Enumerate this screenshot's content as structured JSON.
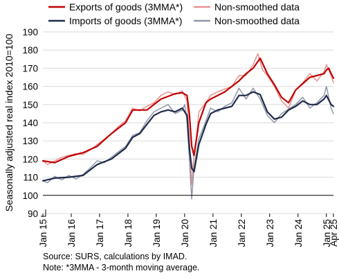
{
  "chart_data": {
    "type": "line",
    "ylabel": "Seasonally adjusted real index 2010=100",
    "ylim": [
      90,
      190
    ],
    "y_axis_break": true,
    "yticks": [
      90,
      100,
      110,
      120,
      130,
      140,
      150,
      160,
      170,
      180,
      190
    ],
    "xlim": [
      "2015-01",
      "2025-04"
    ],
    "x_ticks": [
      {
        "label": "Jan 15",
        "month": "2015-01"
      },
      {
        "label": "Jan 16",
        "month": "2016-01"
      },
      {
        "label": "Jan 17",
        "month": "2017-01"
      },
      {
        "label": "Jan 18",
        "month": "2018-01"
      },
      {
        "label": "Jan 19",
        "month": "2019-01"
      },
      {
        "label": "Jan 20",
        "month": "2020-01"
      },
      {
        "label": "Jan 21",
        "month": "2021-01"
      },
      {
        "label": "Jan 22",
        "month": "2022-01"
      },
      {
        "label": "Jan 23",
        "month": "2023-01"
      },
      {
        "label": "Jan 24",
        "month": "2024-01"
      },
      {
        "label": "Jan 25",
        "month": "2025-01"
      },
      {
        "label": "Apr 25",
        "month": "2025-04"
      }
    ],
    "reference_line": {
      "y": 100,
      "color": "#000000"
    },
    "grid": true,
    "legend": "top",
    "series": [
      {
        "name": "Exports of goods (3MMA*)",
        "color": "#c00000",
        "width": 2.2,
        "points": [
          [
            "2015-01",
            119
          ],
          [
            "2015-06",
            118
          ],
          [
            "2015-12",
            121.5
          ],
          [
            "2016-06",
            123.5
          ],
          [
            "2016-12",
            127
          ],
          [
            "2017-06",
            134
          ],
          [
            "2017-12",
            140
          ],
          [
            "2018-03",
            147
          ],
          [
            "2018-09",
            147
          ],
          [
            "2018-12",
            150
          ],
          [
            "2019-03",
            153
          ],
          [
            "2019-09",
            156
          ],
          [
            "2019-12",
            156.5
          ],
          [
            "2020-02",
            155
          ],
          [
            "2020-03",
            145
          ],
          [
            "2020-04",
            127
          ],
          [
            "2020-05",
            122
          ],
          [
            "2020-07",
            140
          ],
          [
            "2020-10",
            151
          ],
          [
            "2020-12",
            153
          ],
          [
            "2021-06",
            157
          ],
          [
            "2021-12",
            163
          ],
          [
            "2022-03",
            167
          ],
          [
            "2022-06",
            170
          ],
          [
            "2022-09",
            175.5
          ],
          [
            "2022-12",
            167
          ],
          [
            "2023-03",
            161
          ],
          [
            "2023-06",
            154
          ],
          [
            "2023-09",
            151
          ],
          [
            "2023-12",
            158
          ],
          [
            "2024-06",
            165
          ],
          [
            "2024-12",
            167
          ],
          [
            "2025-01",
            169
          ],
          [
            "2025-02",
            170
          ],
          [
            "2025-03",
            167
          ],
          [
            "2025-04",
            164.5
          ]
        ]
      },
      {
        "name": "Non-smoothed data",
        "color": "#e88f8f",
        "width": 1.5,
        "points": [
          [
            "2015-01",
            119
          ],
          [
            "2015-03",
            117
          ],
          [
            "2015-06",
            119
          ],
          [
            "2015-09",
            121
          ],
          [
            "2015-12",
            122
          ],
          [
            "2016-03",
            123
          ],
          [
            "2016-06",
            122.5
          ],
          [
            "2016-09",
            125
          ],
          [
            "2016-12",
            128
          ],
          [
            "2017-03",
            131
          ],
          [
            "2017-06",
            134
          ],
          [
            "2017-09",
            138
          ],
          [
            "2017-12",
            141
          ],
          [
            "2018-03",
            148
          ],
          [
            "2018-06",
            146.5
          ],
          [
            "2018-09",
            149
          ],
          [
            "2018-12",
            151
          ],
          [
            "2019-03",
            155
          ],
          [
            "2019-06",
            157
          ],
          [
            "2019-09",
            155.5
          ],
          [
            "2019-12",
            157.5
          ],
          [
            "2020-02",
            152
          ],
          [
            "2020-03",
            131
          ],
          [
            "2020-04",
            106
          ],
          [
            "2020-05",
            123
          ],
          [
            "2020-06",
            132
          ],
          [
            "2020-07",
            146
          ],
          [
            "2020-10",
            151
          ],
          [
            "2020-12",
            155
          ],
          [
            "2021-03",
            157
          ],
          [
            "2021-06",
            158.5
          ],
          [
            "2021-09",
            160
          ],
          [
            "2021-12",
            166
          ],
          [
            "2022-03",
            166
          ],
          [
            "2022-06",
            172
          ],
          [
            "2022-08",
            178
          ],
          [
            "2022-10",
            169
          ],
          [
            "2022-12",
            166
          ],
          [
            "2023-03",
            160
          ],
          [
            "2023-06",
            152
          ],
          [
            "2023-09",
            148
          ],
          [
            "2023-12",
            158
          ],
          [
            "2024-03",
            162
          ],
          [
            "2024-06",
            167
          ],
          [
            "2024-09",
            163
          ],
          [
            "2024-12",
            168
          ],
          [
            "2025-01",
            172
          ],
          [
            "2025-03",
            166
          ],
          [
            "2025-04",
            162
          ]
        ]
      },
      {
        "name": "Imports of goods (3MMA*)",
        "color": "#1f2a4a",
        "width": 2.2,
        "points": [
          [
            "2015-01",
            108
          ],
          [
            "2015-06",
            109.5
          ],
          [
            "2015-12",
            110
          ],
          [
            "2016-06",
            111
          ],
          [
            "2016-12",
            117
          ],
          [
            "2017-06",
            120
          ],
          [
            "2017-12",
            126
          ],
          [
            "2018-03",
            132
          ],
          [
            "2018-06",
            134
          ],
          [
            "2018-09",
            139
          ],
          [
            "2018-12",
            144
          ],
          [
            "2019-03",
            146
          ],
          [
            "2019-06",
            147
          ],
          [
            "2019-09",
            146
          ],
          [
            "2019-12",
            148
          ],
          [
            "2020-02",
            144
          ],
          [
            "2020-03",
            126
          ],
          [
            "2020-04",
            115
          ],
          [
            "2020-05",
            113
          ],
          [
            "2020-07",
            128
          ],
          [
            "2020-10",
            139
          ],
          [
            "2020-12",
            145
          ],
          [
            "2021-03",
            147
          ],
          [
            "2021-06",
            148
          ],
          [
            "2021-09",
            149
          ],
          [
            "2021-12",
            155
          ],
          [
            "2022-03",
            155
          ],
          [
            "2022-06",
            157
          ],
          [
            "2022-09",
            155.5
          ],
          [
            "2022-12",
            146
          ],
          [
            "2023-03",
            142
          ],
          [
            "2023-06",
            143
          ],
          [
            "2023-09",
            147
          ],
          [
            "2023-12",
            149
          ],
          [
            "2024-03",
            152
          ],
          [
            "2024-06",
            150
          ],
          [
            "2024-09",
            150
          ],
          [
            "2024-12",
            153
          ],
          [
            "2025-01",
            155
          ],
          [
            "2025-03",
            150
          ],
          [
            "2025-04",
            149
          ]
        ]
      },
      {
        "name": "Non-smoothed data",
        "color": "#8e96a6",
        "width": 1.5,
        "points": [
          [
            "2015-01",
            108
          ],
          [
            "2015-03",
            107
          ],
          [
            "2015-06",
            110.5
          ],
          [
            "2015-09",
            108.5
          ],
          [
            "2015-12",
            111
          ],
          [
            "2016-03",
            109
          ],
          [
            "2016-06",
            111.5
          ],
          [
            "2016-09",
            115
          ],
          [
            "2016-12",
            119
          ],
          [
            "2017-03",
            118
          ],
          [
            "2017-06",
            121
          ],
          [
            "2017-09",
            124
          ],
          [
            "2017-12",
            127
          ],
          [
            "2018-03",
            133
          ],
          [
            "2018-06",
            134.5
          ],
          [
            "2018-09",
            141
          ],
          [
            "2018-12",
            146
          ],
          [
            "2019-03",
            148
          ],
          [
            "2019-06",
            150
          ],
          [
            "2019-09",
            145
          ],
          [
            "2019-12",
            147
          ],
          [
            "2020-01",
            150
          ],
          [
            "2020-02",
            141
          ],
          [
            "2020-03",
            120
          ],
          [
            "2020-04",
            98
          ],
          [
            "2020-05",
            116
          ],
          [
            "2020-07",
            131
          ],
          [
            "2020-10",
            141
          ],
          [
            "2020-12",
            148
          ],
          [
            "2021-03",
            146
          ],
          [
            "2021-06",
            149
          ],
          [
            "2021-09",
            151
          ],
          [
            "2021-12",
            159
          ],
          [
            "2022-03",
            153
          ],
          [
            "2022-06",
            159
          ],
          [
            "2022-09",
            153
          ],
          [
            "2022-12",
            144
          ],
          [
            "2023-03",
            140
          ],
          [
            "2023-06",
            145
          ],
          [
            "2023-09",
            147.5
          ],
          [
            "2023-12",
            150
          ],
          [
            "2024-03",
            154
          ],
          [
            "2024-06",
            148
          ],
          [
            "2024-09",
            151
          ],
          [
            "2024-12",
            155
          ],
          [
            "2025-01",
            160
          ],
          [
            "2025-03",
            148
          ],
          [
            "2025-04",
            145
          ]
        ]
      }
    ]
  },
  "legend_items": [
    {
      "label": "Exports of goods (3MMA*)",
      "color": "#c00000"
    },
    {
      "label": "Non-smoothed data",
      "color": "#e88f8f"
    },
    {
      "label": "Imports of goods (3MMA*)",
      "color": "#1f2a4a"
    },
    {
      "label": "Non-smoothed data",
      "color": "#8e96a6"
    }
  ],
  "source": "Source: SURS, calculations by IMAD.",
  "note": "Note: *3MMA - 3-month moving average."
}
